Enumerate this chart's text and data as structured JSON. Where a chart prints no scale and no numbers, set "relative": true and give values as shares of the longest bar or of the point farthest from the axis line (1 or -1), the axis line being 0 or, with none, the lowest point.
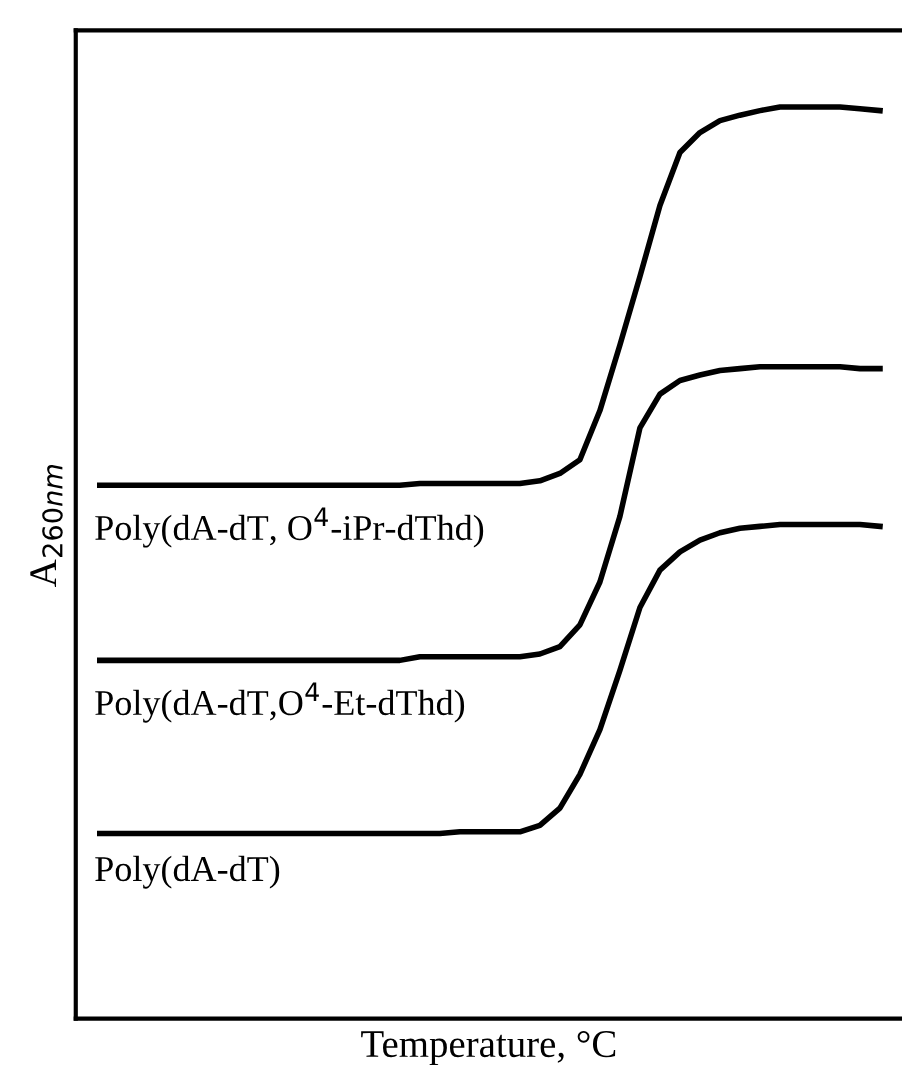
{
  "chart_data": {
    "type": "line",
    "relative": true,
    "xlabel": "Temperature, °C",
    "ylabel": "A$_{260nm}$",
    "categories": [
      null,
      null,
      null,
      null,
      null,
      null,
      null,
      null,
      null,
      null,
      null,
      null,
      null,
      null,
      null,
      null,
      null,
      null,
      null,
      null,
      null,
      null,
      null,
      null,
      null,
      null,
      null,
      null,
      null,
      null,
      null,
      null,
      null,
      null,
      null,
      null,
      null,
      null,
      null,
      null
    ],
    "series": [
      {
        "name": "Poly(dA-dT, O$^{4}$-iPr-dThd)",
        "color": "#000000",
        "values": [
          0.585,
          0.585,
          0.585,
          0.585,
          0.585,
          0.585,
          0.585,
          0.585,
          0.585,
          0.585,
          0.585,
          0.585,
          0.585,
          0.585,
          0.585,
          0.585,
          0.587,
          0.587,
          0.587,
          0.587,
          0.587,
          0.587,
          0.59,
          0.598,
          0.613,
          0.667,
          0.739,
          0.814,
          0.892,
          0.95,
          0.972,
          0.985,
          0.991,
          0.996,
          1,
          1,
          1,
          1,
          0.998,
          0.996
        ]
      },
      {
        "name": "Poly(dA-dT,O$^{4}$-Et-dThd)",
        "color": "#000000",
        "values": [
          0.393,
          0.393,
          0.393,
          0.393,
          0.393,
          0.393,
          0.393,
          0.393,
          0.393,
          0.393,
          0.393,
          0.393,
          0.393,
          0.393,
          0.393,
          0.393,
          0.397,
          0.397,
          0.397,
          0.397,
          0.397,
          0.397,
          0.4,
          0.408,
          0.432,
          0.479,
          0.551,
          0.648,
          0.685,
          0.7,
          0.706,
          0.711,
          0.713,
          0.715,
          0.715,
          0.715,
          0.715,
          0.715,
          0.713,
          0.713
        ]
      },
      {
        "name": "Poly(dA-dT)",
        "color": "#000000",
        "values": [
          0.203,
          0.203,
          0.203,
          0.203,
          0.203,
          0.203,
          0.203,
          0.203,
          0.203,
          0.203,
          0.203,
          0.203,
          0.203,
          0.203,
          0.203,
          0.203,
          0.203,
          0.203,
          0.205,
          0.205,
          0.205,
          0.205,
          0.212,
          0.231,
          0.268,
          0.317,
          0.382,
          0.451,
          0.492,
          0.512,
          0.525,
          0.533,
          0.538,
          0.54,
          0.542,
          0.542,
          0.542,
          0.542,
          0.542,
          0.54
        ]
      }
    ],
    "legend": false,
    "line_style": "solid"
  }
}
